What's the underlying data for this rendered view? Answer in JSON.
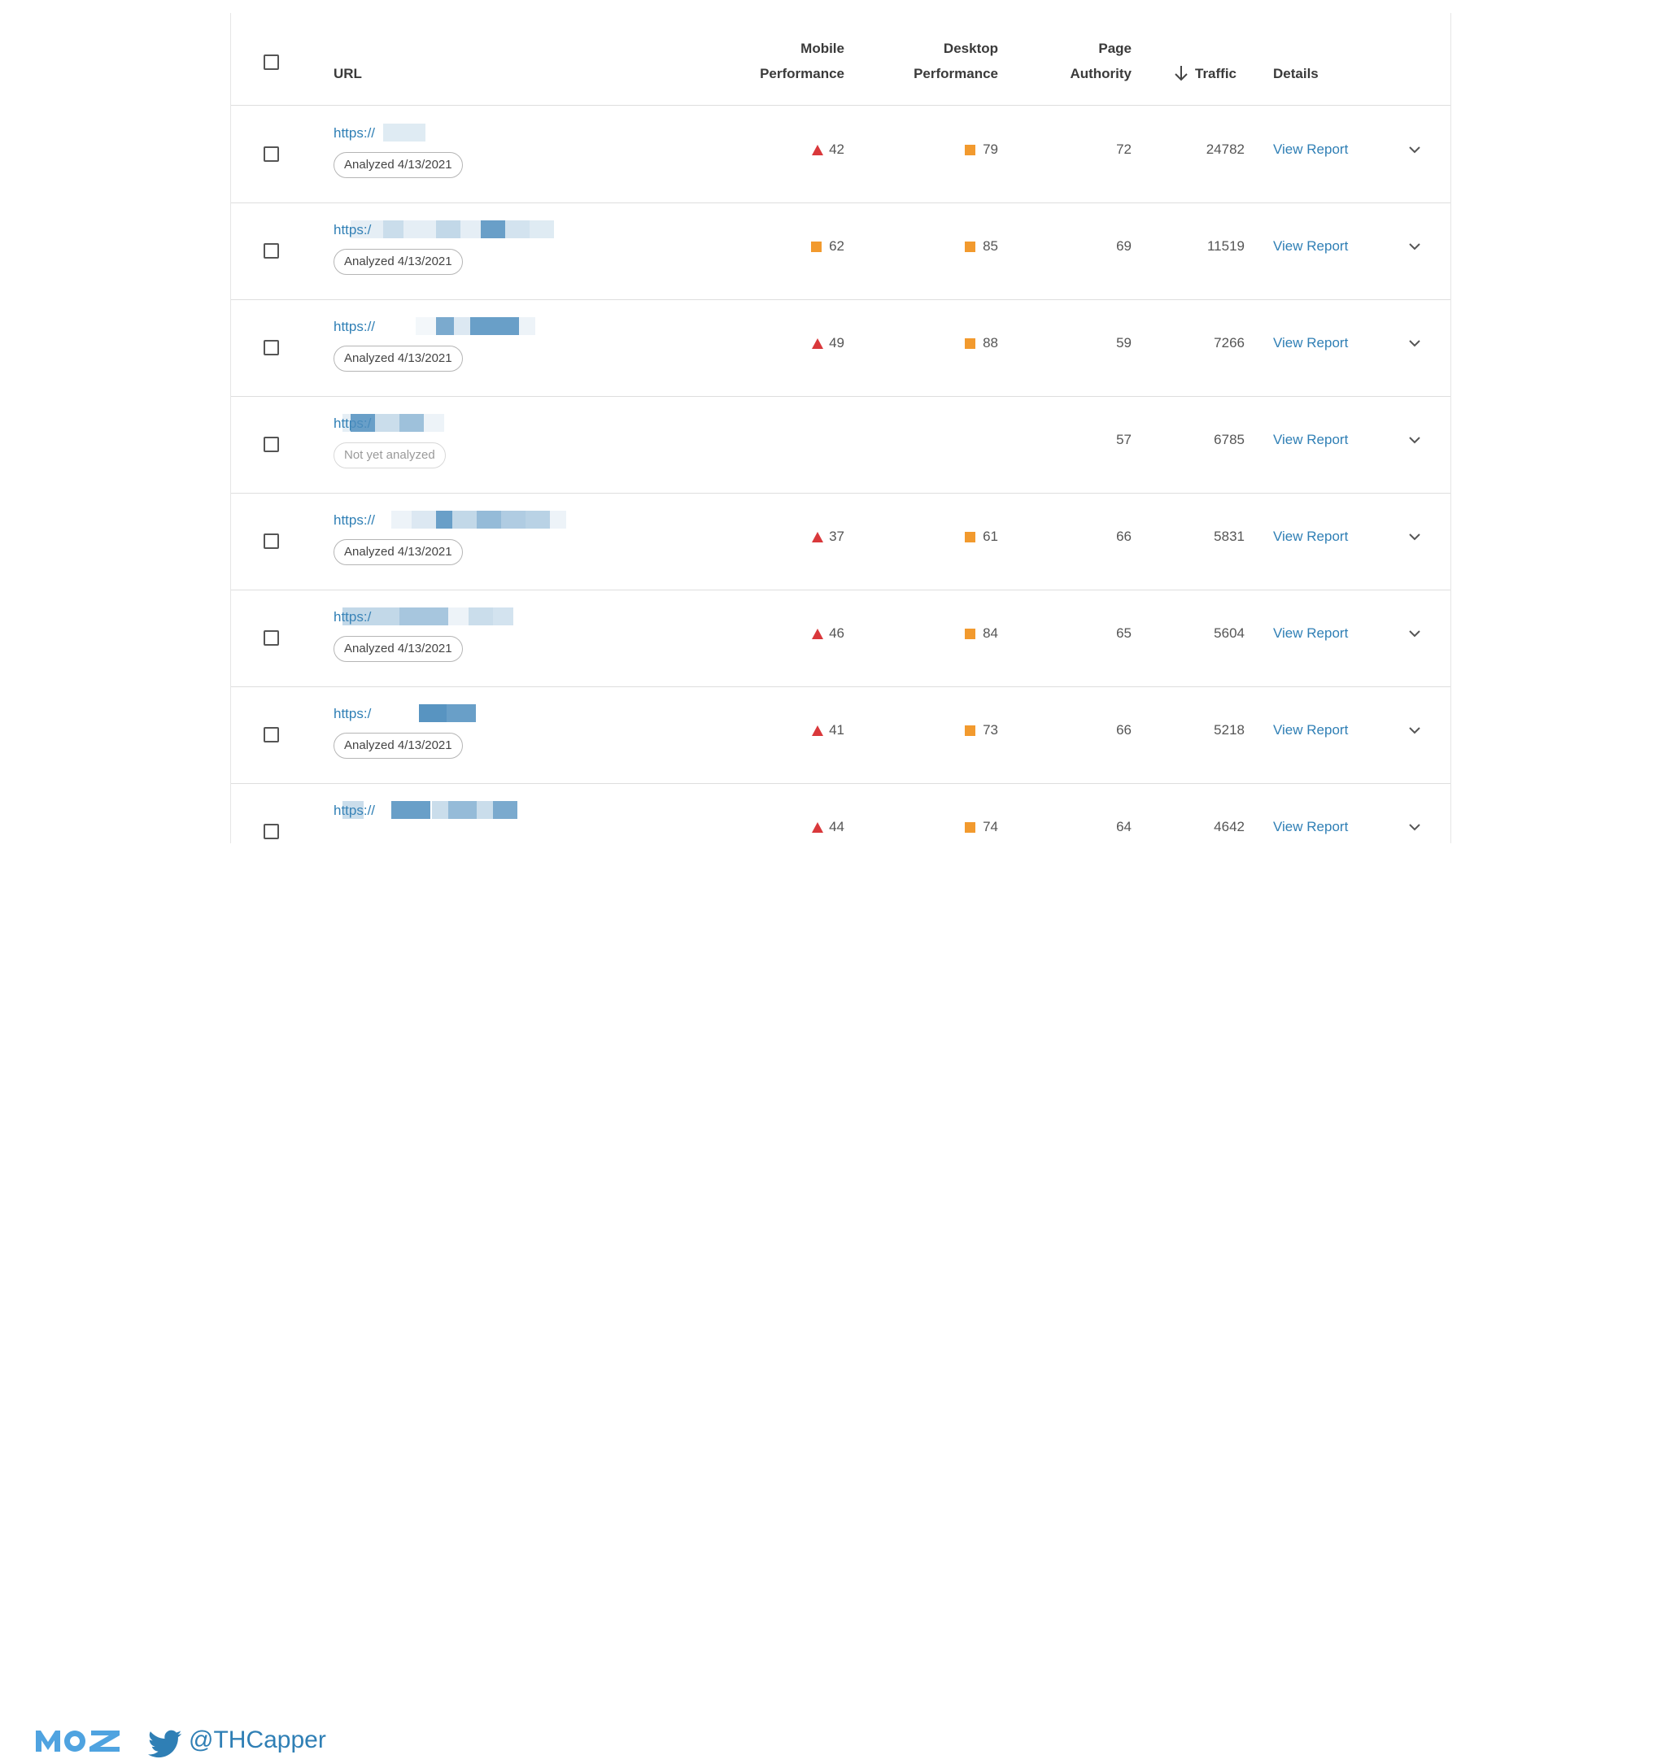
{
  "table": {
    "headers": {
      "url": "URL",
      "mobile_line1": "Mobile",
      "mobile_line2": "Performance",
      "desktop_line1": "Desktop",
      "desktop_line2": "Performance",
      "page_line1": "Page",
      "page_line2": "Authority",
      "traffic": "Traffic",
      "details": "Details"
    },
    "rows": [
      {
        "url": "https://",
        "status": "Analyzed 4/13/2021",
        "mobile": {
          "indicator": "triangle",
          "value": "42"
        },
        "desktop": {
          "indicator": "square",
          "value": "79"
        },
        "page_authority": "72",
        "traffic": "24782",
        "link": "View Report"
      },
      {
        "url": "https:/",
        "status": "Analyzed 4/13/2021",
        "mobile": {
          "indicator": "square",
          "value": "62"
        },
        "desktop": {
          "indicator": "square",
          "value": "85"
        },
        "page_authority": "69",
        "traffic": "11519",
        "link": "View Report"
      },
      {
        "url": "https://",
        "status": "Analyzed 4/13/2021",
        "mobile": {
          "indicator": "triangle",
          "value": "49"
        },
        "desktop": {
          "indicator": "square",
          "value": "88"
        },
        "page_authority": "59",
        "traffic": "7266",
        "link": "View Report"
      },
      {
        "url": "https:/",
        "status": "Not yet analyzed",
        "mobile": null,
        "desktop": null,
        "page_authority": "57",
        "traffic": "6785",
        "link": "View Report"
      },
      {
        "url": "https://",
        "status": "Analyzed 4/13/2021",
        "mobile": {
          "indicator": "triangle",
          "value": "37"
        },
        "desktop": {
          "indicator": "square",
          "value": "61"
        },
        "page_authority": "66",
        "traffic": "5831",
        "link": "View Report"
      },
      {
        "url": "https:/",
        "status": "Analyzed 4/13/2021",
        "mobile": {
          "indicator": "triangle",
          "value": "46"
        },
        "desktop": {
          "indicator": "square",
          "value": "84"
        },
        "page_authority": "65",
        "traffic": "5604",
        "link": "View Report"
      },
      {
        "url": "https:/",
        "status": "Analyzed 4/13/2021",
        "mobile": {
          "indicator": "triangle",
          "value": "41"
        },
        "desktop": {
          "indicator": "square",
          "value": "73"
        },
        "page_authority": "66",
        "traffic": "5218",
        "link": "View Report"
      },
      {
        "url": "https://",
        "status": "",
        "mobile": {
          "indicator": "triangle",
          "value": "44"
        },
        "desktop": {
          "indicator": "square",
          "value": "74"
        },
        "page_authority": "64",
        "traffic": "4642",
        "link": "View Report"
      }
    ]
  },
  "footer": {
    "brand": "MOZ",
    "twitter_handle": "@THCapper"
  },
  "colors": {
    "link": "#2f7fb5",
    "poor": "#d9383b",
    "average": "#f29a2e",
    "brand": "#4fa3e0"
  }
}
